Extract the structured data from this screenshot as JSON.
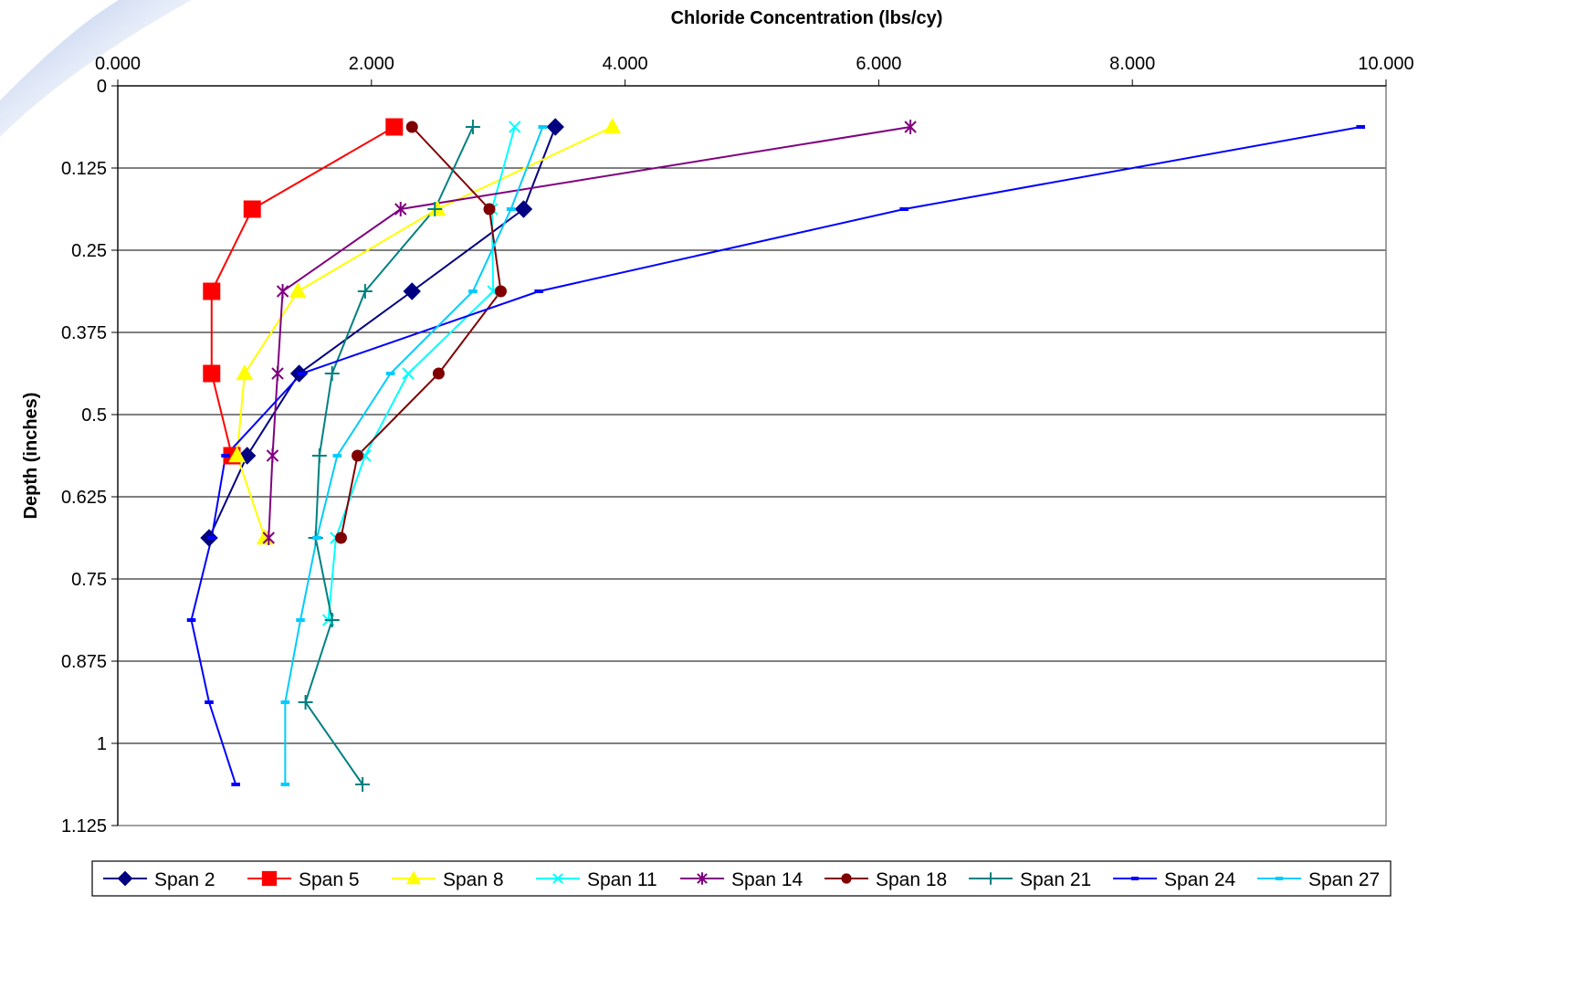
{
  "chart_data": {
    "type": "line",
    "title": "",
    "xlabel": "Chloride Concentration (lbs/cy)",
    "ylabel": "Depth (inches)",
    "xlim": [
      0,
      10
    ],
    "ylim": [
      0,
      1.125
    ],
    "y_inverted": true,
    "x_axis_position": "top",
    "x_ticks": [
      "0.000",
      "2.000",
      "4.000",
      "6.000",
      "8.000",
      "10.000"
    ],
    "y_ticks": [
      "0",
      "0.125",
      "0.25",
      "0.375",
      "0.5",
      "0.625",
      "0.75",
      "0.875",
      "1",
      "1.125"
    ],
    "grid": "horizontal",
    "legend": "bottom",
    "series": [
      {
        "name": "Span 2",
        "color": "#000080",
        "marker": "diamond",
        "x": [
          3.45,
          3.2,
          2.32,
          1.43,
          1.02,
          0.72
        ],
        "y": [
          0.0625,
          0.1875,
          0.3125,
          0.4375,
          0.5625,
          0.6875
        ]
      },
      {
        "name": "Span 5",
        "color": "#ff0000",
        "marker": "square",
        "x": [
          2.18,
          1.06,
          0.74,
          0.74,
          0.9
        ],
        "y": [
          0.0625,
          0.1875,
          0.3125,
          0.4375,
          0.5625
        ]
      },
      {
        "name": "Span 8",
        "color": "#ffff00",
        "marker": "triangle",
        "x": [
          3.9,
          2.52,
          1.42,
          1.0,
          0.94,
          1.16
        ],
        "y": [
          0.0625,
          0.1875,
          0.3125,
          0.4375,
          0.5625,
          0.6875
        ]
      },
      {
        "name": "Span 11",
        "color": "#00ffff",
        "marker": "x",
        "x": [
          3.13,
          2.95,
          2.96,
          2.29,
          1.95,
          1.72,
          1.66
        ],
        "y": [
          0.0625,
          0.1875,
          0.3125,
          0.4375,
          0.5625,
          0.6875,
          0.8125
        ]
      },
      {
        "name": "Span 14",
        "color": "#800080",
        "marker": "star",
        "x": [
          6.25,
          2.23,
          1.3,
          1.26,
          1.22,
          1.19
        ],
        "y": [
          0.0625,
          0.1875,
          0.3125,
          0.4375,
          0.5625,
          0.6875
        ]
      },
      {
        "name": "Span 18",
        "color": "#800000",
        "marker": "circle",
        "x": [
          2.32,
          2.93,
          3.02,
          2.53,
          1.89,
          1.76
        ],
        "y": [
          0.0625,
          0.1875,
          0.3125,
          0.4375,
          0.5625,
          0.6875
        ]
      },
      {
        "name": "Span 21",
        "color": "#008080",
        "marker": "plus",
        "x": [
          2.8,
          2.5,
          1.95,
          1.69,
          1.59,
          1.56,
          1.69,
          1.48,
          1.93
        ],
        "y": [
          0.0625,
          0.1875,
          0.3125,
          0.4375,
          0.5625,
          0.6875,
          0.8125,
          0.9375,
          1.0625
        ]
      },
      {
        "name": "Span 24",
        "color": "#0000ff",
        "marker": "dash",
        "x": [
          9.8,
          6.2,
          3.32,
          1.45,
          0.85,
          0.74,
          0.58,
          0.72,
          0.93
        ],
        "y": [
          0.0625,
          0.1875,
          0.3125,
          0.4375,
          0.5625,
          0.6875,
          0.8125,
          0.9375,
          1.0625
        ]
      },
      {
        "name": "Span 27",
        "color": "#00ccff",
        "marker": "dash",
        "x": [
          3.35,
          3.1,
          2.8,
          2.15,
          1.73,
          1.57,
          1.44,
          1.32,
          1.32
        ],
        "y": [
          0.0625,
          0.1875,
          0.3125,
          0.4375,
          0.5625,
          0.6875,
          0.8125,
          0.9375,
          1.0625
        ]
      }
    ]
  }
}
